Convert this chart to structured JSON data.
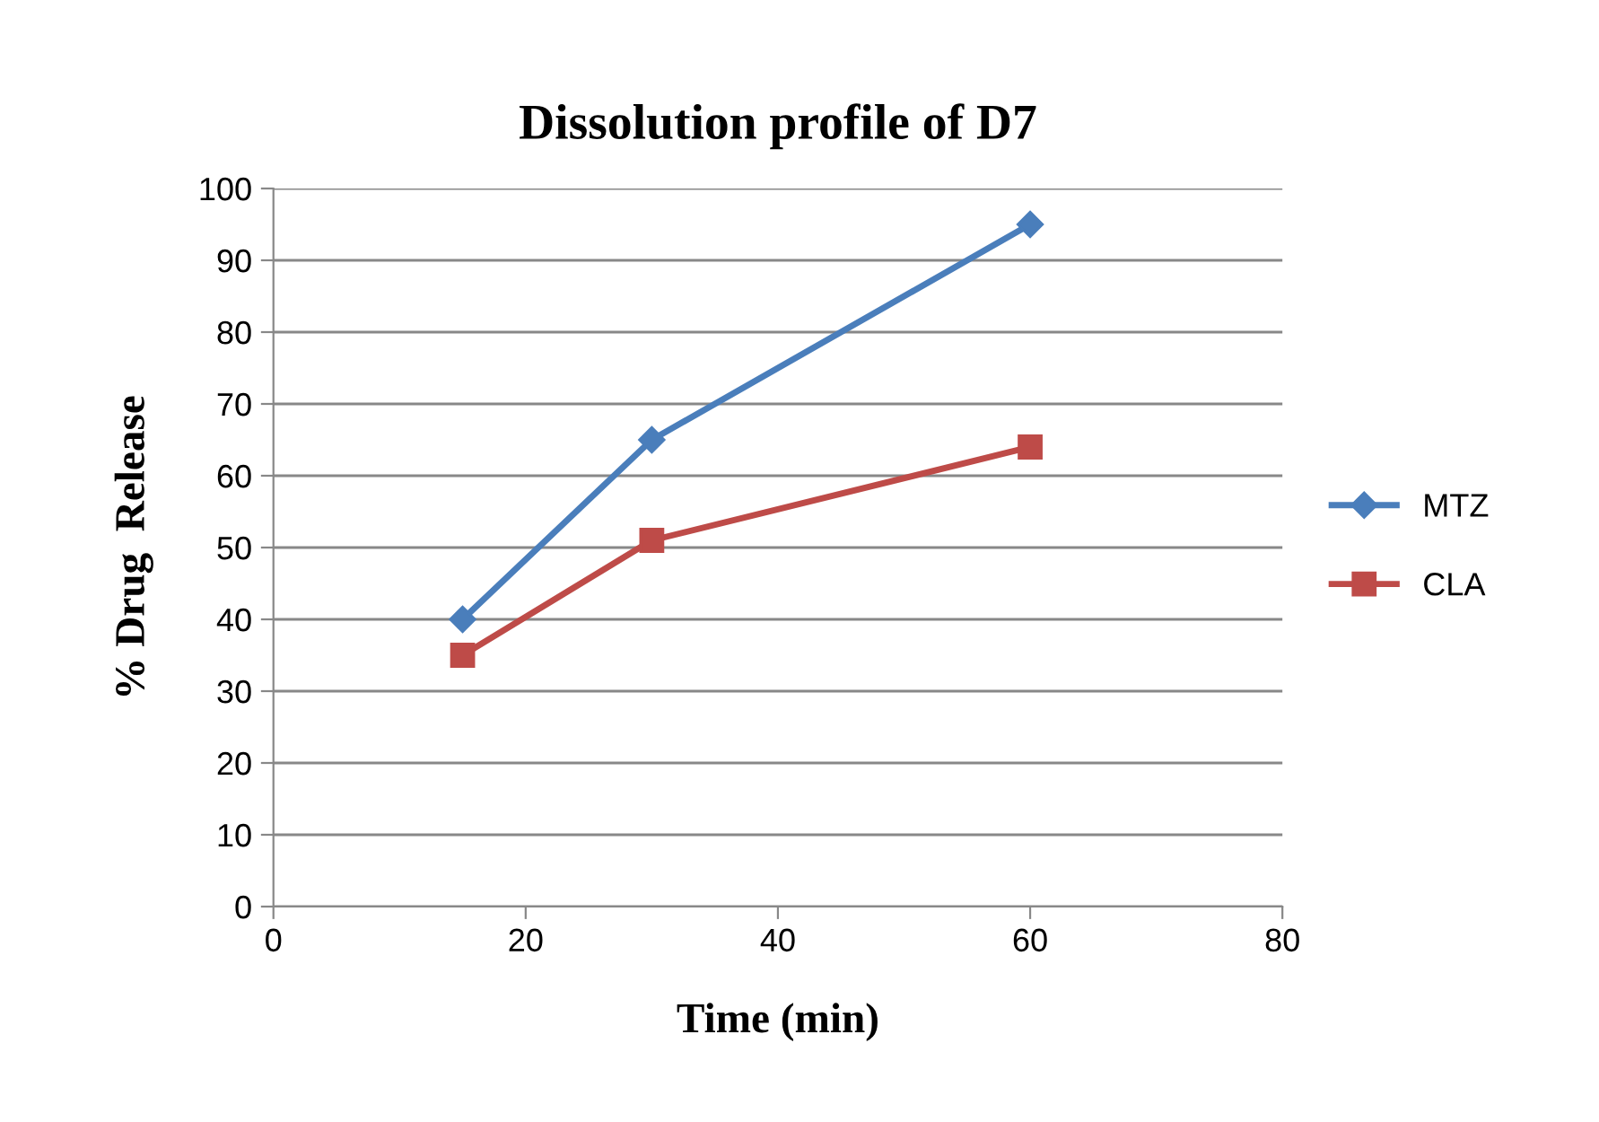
{
  "chart_data": {
    "type": "line",
    "title": "Dissolution profile of D7",
    "xlabel": "Time (min)",
    "ylabel": "% Drug  Release",
    "x": [
      15,
      30,
      60
    ],
    "series": [
      {
        "name": "MTZ",
        "color": "#4a7ebb",
        "marker": "diamond",
        "values": [
          40,
          65,
          95
        ]
      },
      {
        "name": "CLA",
        "color": "#be4b48",
        "marker": "square",
        "values": [
          35,
          51,
          64
        ]
      }
    ],
    "xlim": [
      0,
      80
    ],
    "xticks": [
      0,
      20,
      40,
      60,
      80
    ],
    "ylim": [
      0,
      100
    ],
    "yticks": [
      0,
      10,
      20,
      30,
      40,
      50,
      60,
      70,
      80,
      90,
      100
    ],
    "grid": "y",
    "legend": "right",
    "line_style": "solid"
  }
}
